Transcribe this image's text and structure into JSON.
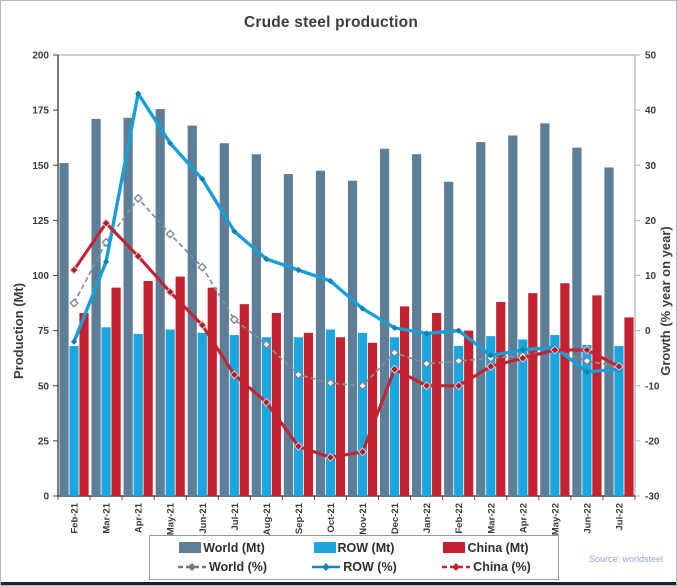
{
  "title": "Crude steel production",
  "source": "Source: worldsteel",
  "colors": {
    "world_bar": "#5e7d96",
    "row_bar": "#1ca6e0",
    "china_bar": "#c52230",
    "world_line": "#828f9b",
    "world_marker_stroke": "#76838f",
    "row_line": "#189fd8",
    "row_marker": "#0f7fae",
    "china_line": "#c22433",
    "china_marker": "#a91e2b",
    "axis_dark": "#3c444c",
    "frame_light": "#aab2b8",
    "tick_text": "#3b3b3b",
    "source_text": "#8ea9c9"
  },
  "chart_data": {
    "type": "bar",
    "subtype": "bar-line combo, dual axis",
    "title": "Crude steel production",
    "categories": [
      "Feb-21",
      "Mar-21",
      "Apr-21",
      "May-21",
      "Jun-21",
      "Jul-21",
      "Aug-21",
      "Sep-21",
      "Oct-21",
      "Nov-21",
      "Dec-21",
      "Jan-22",
      "Feb-22",
      "Mar-22",
      "Apr-22",
      "May-22",
      "Jun-22",
      "Jul-22"
    ],
    "series": [
      {
        "name": "World (Mt)",
        "type": "bar",
        "axis": "left",
        "values": [
          151,
          171,
          171.5,
          175.5,
          168,
          160,
          155,
          146,
          147.5,
          143,
          157.5,
          155,
          142.5,
          160.5,
          163.5,
          169,
          158,
          149
        ]
      },
      {
        "name": "ROW (Mt)",
        "type": "bar",
        "axis": "left",
        "values": [
          68,
          76.5,
          73.5,
          75.5,
          74,
          73,
          72,
          72,
          75.5,
          74,
          72,
          73.5,
          68,
          72.5,
          71,
          73,
          68.5,
          68
        ]
      },
      {
        "name": "China (Mt)",
        "type": "bar",
        "axis": "left",
        "values": [
          83,
          94.5,
          97.5,
          99.5,
          94.5,
          87,
          83,
          74,
          72,
          69.5,
          86,
          83,
          75,
          88,
          92,
          96.5,
          91,
          81
        ]
      },
      {
        "name": "World (%)",
        "type": "line",
        "axis": "right",
        "values": [
          5,
          16,
          24,
          17.5,
          11.5,
          2,
          -2.5,
          -8,
          -9.5,
          -10,
          -4,
          -6,
          -5.5,
          -5,
          -4.5,
          -3.5,
          -5.5,
          -6.5
        ]
      },
      {
        "name": "ROW (%)",
        "type": "line",
        "axis": "right",
        "values": [
          -2,
          12.5,
          43,
          34,
          27.5,
          18,
          13,
          11,
          9,
          4,
          0.5,
          -0.5,
          0,
          -4.5,
          -3.5,
          -3,
          -7.5,
          -7
        ]
      },
      {
        "name": "China (%)",
        "type": "line",
        "axis": "right",
        "values": [
          11,
          19.5,
          13.5,
          7,
          1,
          -8,
          -13,
          -21,
          -23,
          -22,
          -7,
          -10,
          -10,
          -6.5,
          -5,
          -3.5,
          -3.5,
          -6.5
        ]
      }
    ],
    "left_axis": {
      "label": "Production (Mt)",
      "min": 0,
      "max": 200,
      "ticks": [
        0,
        25,
        50,
        75,
        100,
        125,
        150,
        175,
        200
      ]
    },
    "right_axis": {
      "label": "Growth (% year on year)",
      "min": -30,
      "max": 50,
      "ticks": [
        -30,
        -20,
        -10,
        0,
        10,
        20,
        30,
        40,
        50
      ]
    },
    "grid": false,
    "legend_position": "bottom"
  },
  "legend": {
    "items": [
      {
        "label": "World (Mt)",
        "kind": "bar",
        "color": "#5e7d96"
      },
      {
        "label": "ROW (Mt)",
        "kind": "bar",
        "color": "#1ca6e0"
      },
      {
        "label": "China (Mt)",
        "kind": "bar",
        "color": "#c52230"
      },
      {
        "label": "World (%)",
        "kind": "line",
        "color": "#6a7a87",
        "dashed": true
      },
      {
        "label": "ROW (%)",
        "kind": "line",
        "color": "#1b84b4",
        "dashed": false
      },
      {
        "label": "China (%)",
        "kind": "line",
        "color": "#c22433",
        "dashed": true
      }
    ]
  }
}
